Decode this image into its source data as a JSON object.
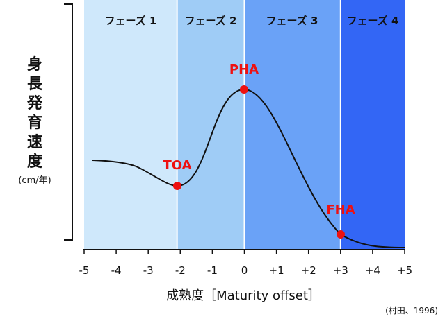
{
  "phases": [
    {
      "label": "フェーズ 1",
      "from": -5,
      "to": -2.1,
      "color": "#cfe8fb"
    },
    {
      "label": "フェーズ 2",
      "from": -2.1,
      "to": 0,
      "color": "#9fccf6"
    },
    {
      "label": "フェーズ 3",
      "from": 0,
      "to": 3,
      "color": "#6aa2f7"
    },
    {
      "label": "フェーズ 4",
      "from": 3,
      "to": 5,
      "color": "#3366f5"
    }
  ],
  "y_axis": {
    "label": "身長発育速度",
    "unit": "(cm/年)"
  },
  "x_axis": {
    "label": "成熟度［Maturity offset］",
    "ticks": [
      "-5",
      "-4",
      "-3",
      "-2",
      "-1",
      "0",
      "+1",
      "+2",
      "+3",
      "+4",
      "+5"
    ],
    "range": [
      -5,
      5
    ]
  },
  "points": [
    {
      "label": "TOA",
      "x": -2.1
    },
    {
      "label": "PHA",
      "x": 0
    },
    {
      "label": "FHA",
      "x": 3
    }
  ],
  "source": "(村田、1996)",
  "colors": {
    "point": "#ee1111",
    "curve": "#111111",
    "divider": "#ffffff"
  }
}
